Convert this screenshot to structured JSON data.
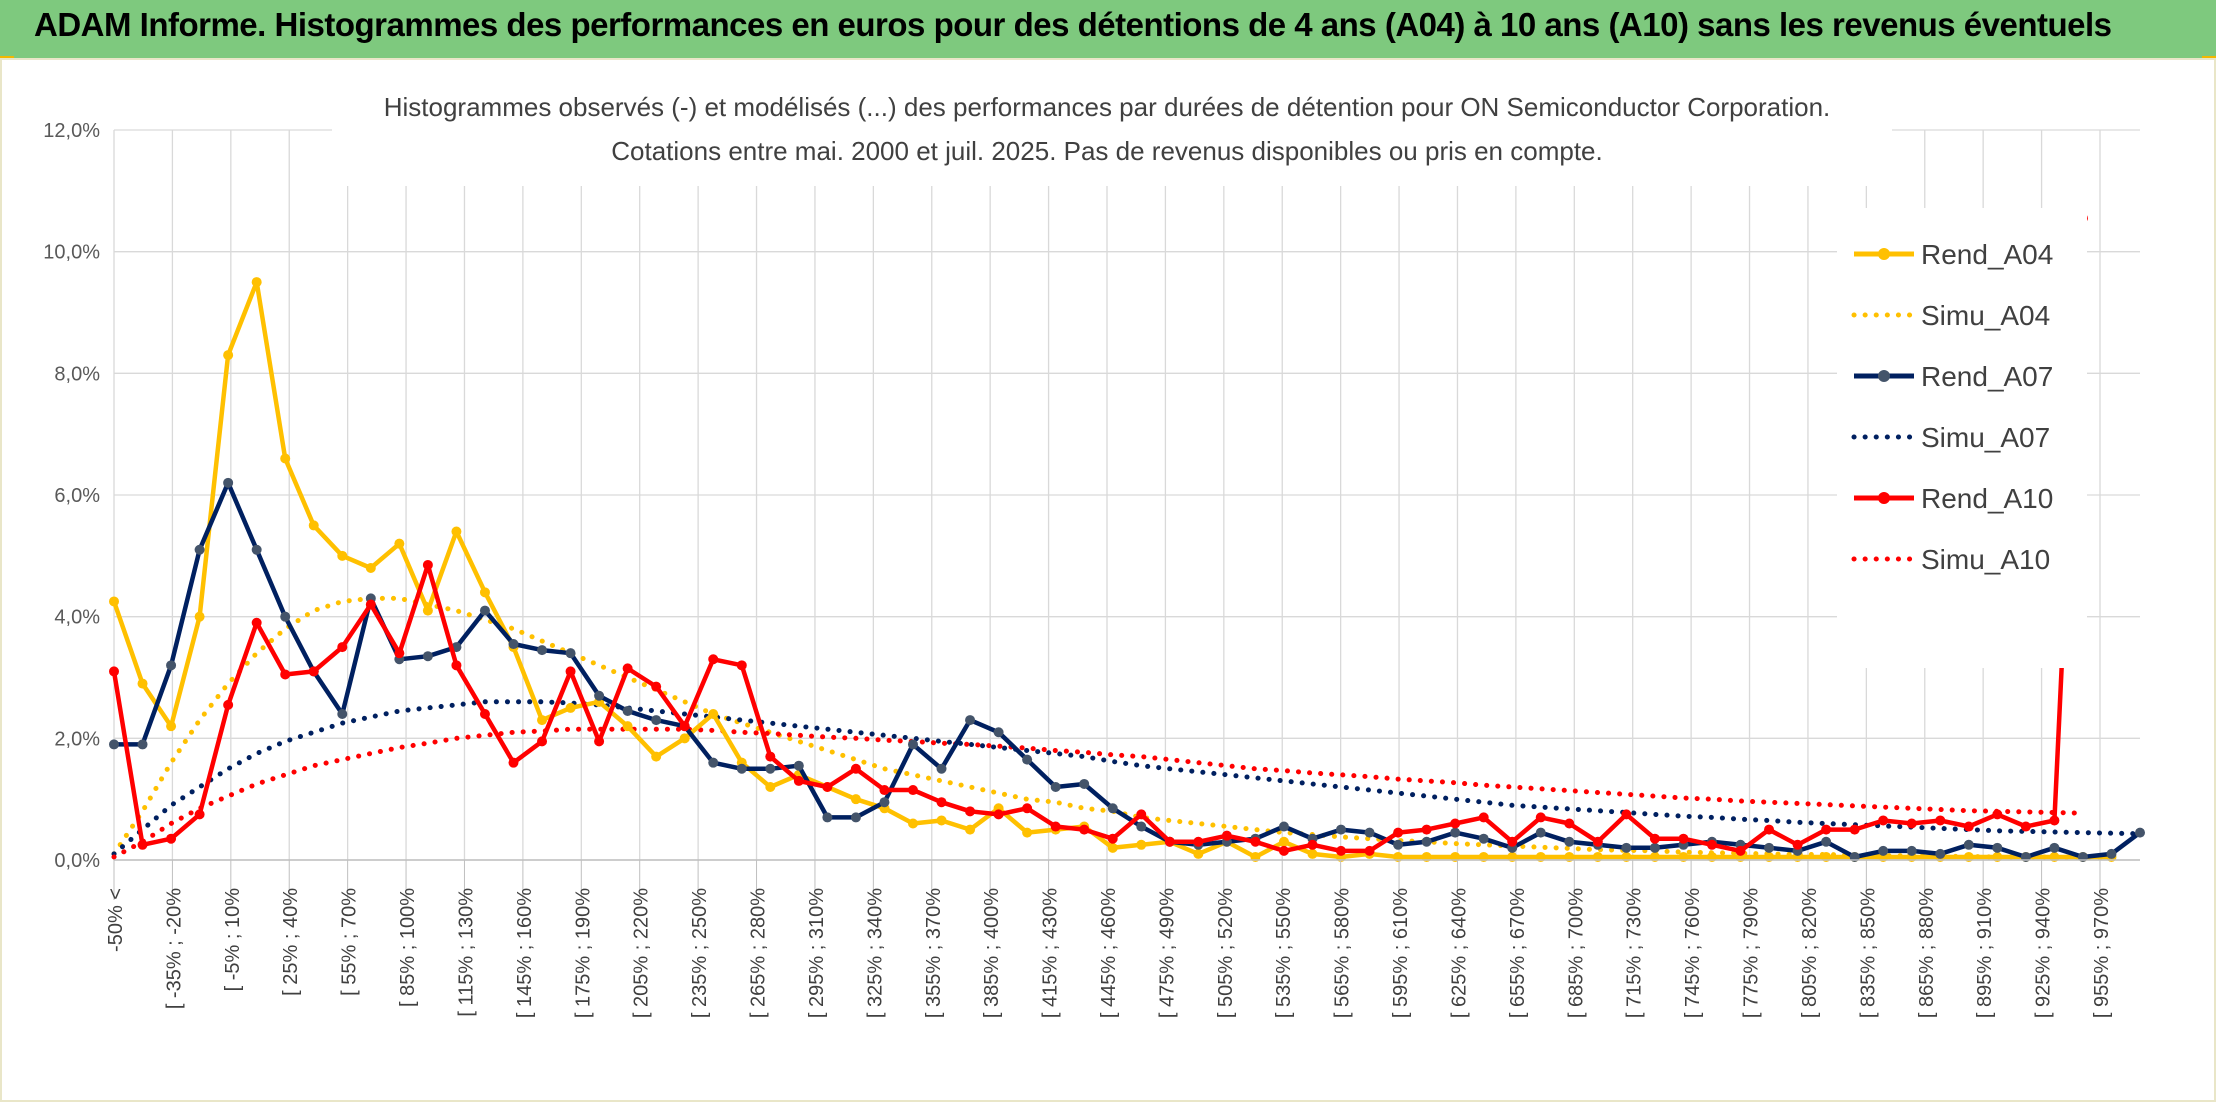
{
  "banner": {
    "title": "ADAM Informe. Histogrammes des performances en euros pour des détentions de 4 ans (A04) à 10 ans (A10) sans les revenus éventuels"
  },
  "colors": {
    "A04": "#ffc000",
    "A07": "#002060",
    "A10": "#ff0000",
    "banner": "#7ec97e",
    "grid": "#d9d9d9"
  },
  "chart_data": {
    "type": "line",
    "title": "Histogrammes observés (-) et modélisés (...) des performances par durées de détention pour ON Semiconductor Corporation.",
    "subtitle": "Cotations entre mai. 2000 et juil. 2025. Pas de revenus disponibles ou pris en compte.",
    "ylim": [
      0,
      12
    ],
    "yticks": [
      "0,0%",
      "2,0%",
      "4,0%",
      "6,0%",
      "8,0%",
      "10,0%",
      "12,0%"
    ],
    "grid": true,
    "legend_position": "right",
    "x_labels": [
      "-50% <",
      "[ -35% ; -20%",
      "[ -5% ; 10%",
      "[ 25% ; 40%",
      "[ 55% ; 70%",
      "[ 85% ; 100%",
      "[ 115% ; 130%",
      "[ 145% ; 160%",
      "[ 175% ; 190%",
      "[ 205% ; 220%",
      "[ 235% ; 250%",
      "[ 265% ; 280%",
      "[ 295% ; 310%",
      "[ 325% ; 340%",
      "[ 355% ; 370%",
      "[ 385% ; 400%",
      "[ 415% ; 430%",
      "[ 445% ; 460%",
      "[ 475% ; 490%",
      "[ 505% ; 520%",
      "[ 535% ; 550%",
      "[ 565% ; 580%",
      "[ 595% ; 610%",
      "[ 625% ; 640%",
      "[ 655% ; 670%",
      "[ 685% ; 700%",
      "[ 715% ; 730%",
      "[ 745% ; 760%",
      "[ 775% ; 790%",
      "[ 805% ; 820%",
      "[ 835% ; 850%",
      "[ 865% ; 880%",
      "[ 895% ; 910%",
      "[ 925% ; 940%",
      "[ 955% ; 970%"
    ],
    "series": [
      {
        "name": "Rend_A04",
        "style": "solid",
        "color": "#ffc000",
        "values": [
          4.25,
          2.9,
          2.2,
          4.0,
          8.3,
          9.5,
          6.6,
          5.5,
          5.0,
          4.8,
          5.2,
          4.1,
          5.4,
          4.4,
          3.5,
          2.3,
          2.5,
          2.6,
          2.2,
          1.7,
          2.0,
          2.4,
          1.6,
          1.2,
          1.4,
          1.2,
          1.0,
          0.85,
          0.6,
          0.65,
          0.5,
          0.85,
          0.45,
          0.5,
          0.55,
          0.2,
          0.25,
          0.3,
          0.1,
          0.3,
          0.05,
          0.3,
          0.1,
          0.05,
          0.1,
          0.05,
          0.05,
          0.05,
          0.05,
          0.05,
          0.05,
          0.05,
          0.05,
          0.05,
          0.05,
          0.05,
          0.05,
          0.05,
          0.05,
          0.05,
          0.05,
          0.05,
          0.05,
          0.05,
          0.05,
          0.05,
          0.05,
          0.05,
          0.05,
          0.05,
          0.05
        ]
      },
      {
        "name": "Simu_A04",
        "style": "dotted",
        "color": "#ffc000",
        "values": [
          0.1,
          0.8,
          1.6,
          2.3,
          2.9,
          3.4,
          3.8,
          4.1,
          4.25,
          4.3,
          4.3,
          4.2,
          4.1,
          3.95,
          3.8,
          3.6,
          3.4,
          3.2,
          3.0,
          2.8,
          2.6,
          2.4,
          2.25,
          2.1,
          1.95,
          1.8,
          1.65,
          1.5,
          1.4,
          1.3,
          1.2,
          1.1,
          1.0,
          0.95,
          0.85,
          0.8,
          0.7,
          0.65,
          0.6,
          0.55,
          0.5,
          0.45,
          0.42,
          0.38,
          0.35,
          0.32,
          0.3,
          0.27,
          0.25,
          0.23,
          0.21,
          0.19,
          0.17,
          0.16,
          0.15,
          0.13,
          0.12,
          0.11,
          0.1,
          0.09,
          0.09,
          0.08,
          0.07,
          0.07,
          0.06,
          0.06,
          0.05,
          0.05,
          0.05,
          0.04,
          0.04
        ]
      },
      {
        "name": "Rend_A07",
        "style": "solid",
        "color": "#002060",
        "values": [
          1.9,
          1.9,
          3.2,
          5.1,
          6.2,
          5.1,
          4.0,
          3.1,
          2.4,
          4.3,
          3.3,
          3.35,
          3.5,
          4.1,
          3.55,
          3.45,
          3.4,
          2.7,
          2.45,
          2.3,
          2.2,
          1.6,
          1.5,
          1.5,
          1.55,
          0.7,
          0.7,
          0.95,
          1.9,
          1.5,
          2.3,
          2.1,
          1.65,
          1.2,
          1.25,
          0.85,
          0.55,
          0.3,
          0.25,
          0.3,
          0.35,
          0.55,
          0.35,
          0.5,
          0.45,
          0.25,
          0.3,
          0.45,
          0.35,
          0.2,
          0.45,
          0.3,
          0.25,
          0.2,
          0.2,
          0.25,
          0.3,
          0.25,
          0.2,
          0.15,
          0.3,
          0.05,
          0.15,
          0.15,
          0.1,
          0.25,
          0.2,
          0.05,
          0.2,
          0.05,
          0.1,
          0.45
        ]
      },
      {
        "name": "Simu_A07",
        "style": "dotted",
        "color": "#002060",
        "values": [
          0.1,
          0.5,
          0.9,
          1.2,
          1.5,
          1.75,
          1.95,
          2.1,
          2.25,
          2.35,
          2.45,
          2.5,
          2.55,
          2.6,
          2.6,
          2.6,
          2.58,
          2.55,
          2.5,
          2.45,
          2.4,
          2.35,
          2.3,
          2.25,
          2.2,
          2.15,
          2.1,
          2.05,
          2.0,
          1.95,
          1.9,
          1.85,
          1.8,
          1.75,
          1.7,
          1.62,
          1.55,
          1.5,
          1.45,
          1.4,
          1.35,
          1.3,
          1.25,
          1.2,
          1.15,
          1.1,
          1.05,
          1.0,
          0.95,
          0.9,
          0.87,
          0.84,
          0.81,
          0.78,
          0.75,
          0.72,
          0.7,
          0.67,
          0.65,
          0.62,
          0.6,
          0.58,
          0.56,
          0.54,
          0.52,
          0.5,
          0.48,
          0.47,
          0.46,
          0.45,
          0.44,
          0.43
        ]
      },
      {
        "name": "Rend_A10",
        "style": "solid",
        "color": "#ff0000",
        "values": [
          3.1,
          0.25,
          0.35,
          0.75,
          2.55,
          3.9,
          3.05,
          3.1,
          3.5,
          4.2,
          3.4,
          4.85,
          3.2,
          2.4,
          1.6,
          1.95,
          3.1,
          1.95,
          3.15,
          2.85,
          2.2,
          3.3,
          3.2,
          1.7,
          1.3,
          1.2,
          1.5,
          1.15,
          1.15,
          0.95,
          0.8,
          0.75,
          0.85,
          0.55,
          0.5,
          0.35,
          0.75,
          0.3,
          0.3,
          0.4,
          0.3,
          0.15,
          0.25,
          0.15,
          0.15,
          0.45,
          0.5,
          0.6,
          0.7,
          0.3,
          0.7,
          0.6,
          0.3,
          0.75,
          0.35,
          0.35,
          0.25,
          0.15,
          0.5,
          0.25,
          0.5,
          0.5,
          0.65,
          0.6,
          0.65,
          0.55,
          0.75,
          0.55,
          0.65,
          10.55
        ]
      },
      {
        "name": "Simu_A10",
        "style": "dotted",
        "color": "#ff0000",
        "values": [
          0.05,
          0.3,
          0.6,
          0.85,
          1.05,
          1.25,
          1.4,
          1.55,
          1.65,
          1.75,
          1.85,
          1.92,
          2.0,
          2.05,
          2.1,
          2.12,
          2.15,
          2.15,
          2.15,
          2.15,
          2.15,
          2.13,
          2.1,
          2.08,
          2.05,
          2.02,
          2.0,
          1.97,
          1.95,
          1.92,
          1.9,
          1.87,
          1.84,
          1.8,
          1.77,
          1.73,
          1.7,
          1.65,
          1.6,
          1.55,
          1.5,
          1.47,
          1.43,
          1.4,
          1.37,
          1.33,
          1.3,
          1.27,
          1.23,
          1.2,
          1.17,
          1.14,
          1.11,
          1.08,
          1.05,
          1.02,
          1.0,
          0.97,
          0.95,
          0.93,
          0.91,
          0.89,
          0.87,
          0.85,
          0.83,
          0.81,
          0.8,
          0.79,
          0.78,
          0.77
        ]
      }
    ]
  }
}
